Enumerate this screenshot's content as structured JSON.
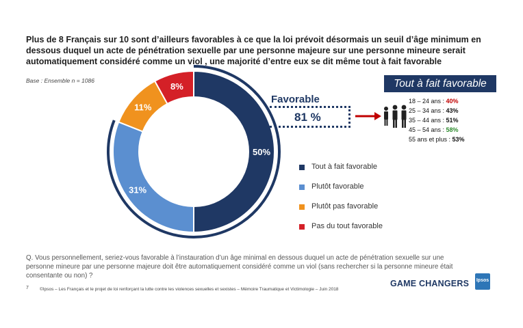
{
  "title": "Plus de 8 Français sur 10 sont d’ailleurs favorables à ce que la loi prévoit désormais un seuil d’âge minimum en dessous duquel un acte de pénétration sexuelle par une personne majeure sur une personne mineure serait automatiquement considéré comme un viol , une majorité d’entre eux se dit même tout à fait favorable",
  "base": "Base : Ensemble n = 1086",
  "favorable": {
    "label": "Favorable",
    "value": "81 %"
  },
  "tout_header": "Tout à fait favorable",
  "age_groups": [
    {
      "label": "18 – 24 ans : ",
      "value": "40%",
      "color": "#c00000"
    },
    {
      "label": "25 – 34 ans : ",
      "value": "43%",
      "color": "#111111"
    },
    {
      "label": "35 – 44 ans : ",
      "value": "51%",
      "color": "#111111"
    },
    {
      "label": "45 – 54 ans : ",
      "value": "58%",
      "color": "#2e8b2e"
    },
    {
      "label": "55 ans et plus : ",
      "value": "53%",
      "color": "#111111"
    }
  ],
  "chart_data": {
    "type": "pie",
    "categories": [
      "Tout à fait favorable",
      "Plutôt favorable",
      "Plutôt pas favorable",
      "Pas du tout favorable"
    ],
    "values": [
      50,
      31,
      11,
      8
    ],
    "labels": [
      "50%",
      "31%",
      "11%",
      "8%"
    ],
    "colors": [
      "#1f3864",
      "#5b8fd0",
      "#f0921e",
      "#d42027"
    ],
    "legend_position": "right"
  },
  "question": "Q. Vous personnellement, seriez-vous favorable à l’instauration d’un âge minimal en dessous duquel un acte de pénétration sexuelle sur une personne mineure par une personne majeure doit être automatiquement considéré comme un viol (sans rechercher si la personne mineure était consentante ou non) ?",
  "page_number": "7",
  "footer": "©Ipsos – Les Français et le projet de loi renforçant la lutte contre les violences sexuelles et sexistes – Mémoire Traumatique et Victimologie – Juin 2018",
  "brand": "GAME CHANGERS",
  "logo_text": "Ipsos"
}
